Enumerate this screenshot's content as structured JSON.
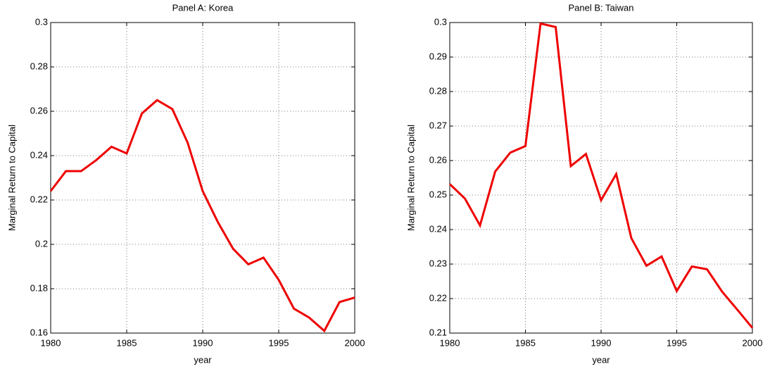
{
  "chart_data": [
    {
      "type": "line",
      "title": "Panel A: Korea",
      "xlabel": "year",
      "ylabel": "Marginal Return to Capital",
      "x": [
        1980,
        1981,
        1982,
        1983,
        1984,
        1985,
        1986,
        1987,
        1988,
        1989,
        1990,
        1991,
        1992,
        1993,
        1994,
        1995,
        1996,
        1997,
        1998,
        1999,
        2000
      ],
      "series": [
        {
          "color": "#ee0000",
          "values": [
            0.224,
            0.233,
            0.233,
            0.238,
            0.244,
            0.241,
            0.259,
            0.265,
            0.261,
            0.246,
            0.224,
            0.21,
            0.198,
            0.191,
            0.194,
            0.184,
            0.171,
            0.167,
            0.161,
            0.174,
            0.176
          ]
        }
      ],
      "xlim": [
        1980,
        2000
      ],
      "xticks": [
        1980,
        1985,
        1990,
        1995,
        2000
      ],
      "ylim": [
        0.16,
        0.3
      ],
      "yticks": [
        0.16,
        0.18,
        0.2,
        0.22,
        0.24,
        0.26,
        0.28,
        0.3
      ],
      "grid": true
    },
    {
      "type": "line",
      "title": "Panel B: Taiwan",
      "xlabel": "year",
      "ylabel": "Marginal Return to Capital",
      "x": [
        1980,
        1981,
        1982,
        1983,
        1984,
        1985,
        1986,
        1987,
        1988,
        1989,
        1990,
        1991,
        1992,
        1993,
        1994,
        1995,
        1996,
        1997,
        1998,
        1999,
        2000
      ],
      "series": [
        {
          "color": "#ee0000",
          "values": [
            0.2532,
            0.249,
            0.2412,
            0.2568,
            0.2623,
            0.2642,
            0.2997,
            0.2987,
            0.2584,
            0.2619,
            0.2485,
            0.2561,
            0.2375,
            0.2295,
            0.2322,
            0.2222,
            0.2293,
            0.2285,
            0.222,
            0.2168,
            0.2115
          ]
        }
      ],
      "xlim": [
        1980,
        2000
      ],
      "xticks": [
        1980,
        1985,
        1990,
        1995,
        2000
      ],
      "ylim": [
        0.21,
        0.3
      ],
      "yticks": [
        0.21,
        0.22,
        0.23,
        0.24,
        0.25,
        0.26,
        0.27,
        0.28,
        0.29,
        0.3
      ],
      "grid": true
    }
  ]
}
